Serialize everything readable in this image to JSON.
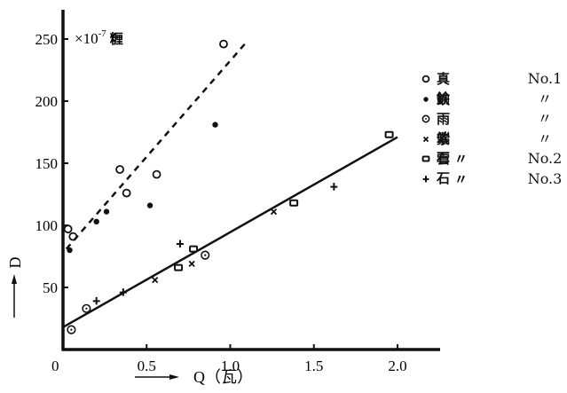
{
  "chart_data": {
    "type": "scatter",
    "title": "",
    "xlabel": "Q (瓦)",
    "ylabel": "D",
    "y_unit_annotation": "×10⁻⁷ 糎",
    "xlim": [
      0,
      2.2
    ],
    "ylim": [
      0,
      270
    ],
    "x_ticks": [
      "0",
      "0.5",
      "1.0",
      "1.5",
      "2.0"
    ],
    "y_ticks": [
      "50",
      "100",
      "150",
      "200",
      "250"
    ],
    "grid": false,
    "legend_position": "right",
    "series": [
      {
        "name": "真鍮 No.1",
        "marker": "open-circle",
        "points": [
          [
            0.03,
            97
          ],
          [
            0.06,
            91
          ],
          [
            0.34,
            145
          ],
          [
            0.38,
            126
          ],
          [
            0.56,
            141
          ],
          [
            0.96,
            246
          ]
        ]
      },
      {
        "name": "鉄 No.1",
        "marker": "filled-dot",
        "points": [
          [
            0.04,
            80
          ],
          [
            0.2,
            103
          ],
          [
            0.26,
            111
          ],
          [
            0.52,
            116
          ],
          [
            0.91,
            181
          ]
        ]
      },
      {
        "name": "雨端石 No.1",
        "marker": "circled-dot",
        "points": [
          [
            0.05,
            16
          ],
          [
            0.14,
            33
          ],
          [
            0.85,
            76
          ]
        ]
      },
      {
        "name": "紫雲石 No.1",
        "marker": "cross",
        "points": [
          [
            0.55,
            56
          ],
          [
            0.77,
            69
          ],
          [
            1.26,
            111
          ]
        ]
      },
      {
        "name": "紫雲石 No.2",
        "marker": "square",
        "points": [
          [
            0.69,
            66
          ],
          [
            0.78,
            81
          ],
          [
            1.38,
            118
          ],
          [
            1.95,
            173
          ]
        ]
      },
      {
        "name": "紫雲石 No.3",
        "marker": "plus",
        "points": [
          [
            0.2,
            39
          ],
          [
            0.36,
            46
          ],
          [
            0.7,
            85
          ],
          [
            1.62,
            131
          ]
        ]
      }
    ],
    "fit_lines": [
      {
        "name": "metals (dashed)",
        "style": "dashed",
        "from": [
          0.02,
          81
        ],
        "to": [
          1.1,
          248
        ]
      },
      {
        "name": "stones (solid)",
        "style": "solid",
        "from": [
          0.0,
          18
        ],
        "to": [
          2.0,
          171
        ]
      }
    ]
  },
  "axes": {
    "x_ticks": [
      {
        "label": "0.5",
        "v": 0.5
      },
      {
        "label": "1.0",
        "v": 1.0
      },
      {
        "label": "1.5",
        "v": 1.5
      },
      {
        "label": "2.0",
        "v": 2.0
      }
    ],
    "origin_label": "0",
    "y_ticks": [
      {
        "label": "50",
        "v": 50
      },
      {
        "label": "100",
        "v": 100
      },
      {
        "label": "150",
        "v": 150
      },
      {
        "label": "200",
        "v": 200
      },
      {
        "label": "250",
        "v": 250
      }
    ],
    "x_label": "Q（瓦）",
    "y_label": "D",
    "unit": "×10",
    "unit_exp": "-7",
    "unit_word": "糎"
  },
  "legend": [
    {
      "marker": "open-circle",
      "name": "真鍮",
      "no": "No.1"
    },
    {
      "marker": "filled-dot",
      "name": "鉄",
      "no": "〃"
    },
    {
      "marker": "circled-dot",
      "name": "雨端石",
      "no": "〃"
    },
    {
      "marker": "cross",
      "name": "紫雲石",
      "no": "〃"
    },
    {
      "marker": "square",
      "name": "〃",
      "no": "No.2"
    },
    {
      "marker": "plus",
      "name": "〃",
      "no": "No.3"
    }
  ]
}
